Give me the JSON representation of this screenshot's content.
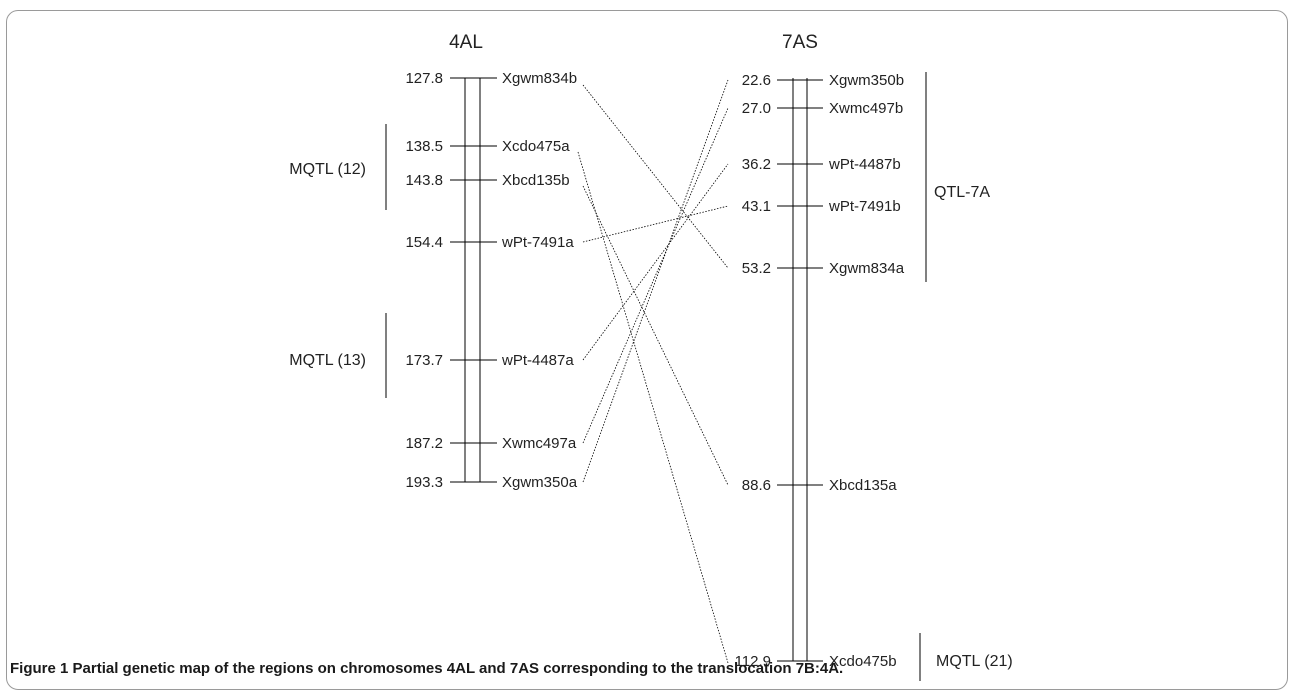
{
  "caption": {
    "figure_label": "Figure 1",
    "text": "Partial genetic map of the regions on chromosomes 4AL and 7AS corresponding to the translocation 7B:4A."
  },
  "chromosomes": [
    {
      "id": "4AL",
      "title": "4AL",
      "markers": [
        {
          "pos": "127.8",
          "name": "Xgwm834b"
        },
        {
          "pos": "138.5",
          "name": "Xcdo475a"
        },
        {
          "pos": "143.8",
          "name": "Xbcd135b"
        },
        {
          "pos": "154.4",
          "name": "wPt-7491a"
        },
        {
          "pos": "173.7",
          "name": "wPt-4487a"
        },
        {
          "pos": "187.2",
          "name": "Xwmc497a"
        },
        {
          "pos": "193.3",
          "name": "Xgwm350a"
        }
      ],
      "qtls": [
        "MQTL (12)",
        "MQTL (13)"
      ]
    },
    {
      "id": "7AS",
      "title": "7AS",
      "markers": [
        {
          "pos": "22.6",
          "name": "Xgwm350b"
        },
        {
          "pos": "27.0",
          "name": "Xwmc497b"
        },
        {
          "pos": "36.2",
          "name": "wPt-4487b"
        },
        {
          "pos": "43.1",
          "name": "wPt-7491b"
        },
        {
          "pos": "53.2",
          "name": "Xgwm834a"
        },
        {
          "pos": "88.6",
          "name": "Xbcd135a"
        },
        {
          "pos": "112.9",
          "name": "Xcdo475b"
        }
      ],
      "qtls": [
        "QTL-7A",
        "MQTL (21)"
      ]
    }
  ],
  "connections": [
    {
      "from": "Xgwm834b",
      "to": "Xgwm834a"
    },
    {
      "from": "Xcdo475a",
      "to": "Xcdo475b"
    },
    {
      "from": "Xbcd135b",
      "to": "Xbcd135a"
    },
    {
      "from": "wPt-7491a",
      "to": "wPt-7491b"
    },
    {
      "from": "wPt-4487a",
      "to": "wPt-4487b"
    },
    {
      "from": "Xwmc497a",
      "to": "Xwmc497b"
    },
    {
      "from": "Xgwm350a",
      "to": "Xgwm350b"
    }
  ]
}
